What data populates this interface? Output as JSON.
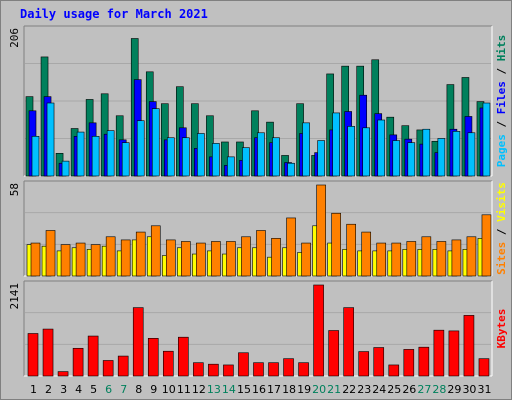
{
  "chart_data": {
    "type": "bar",
    "title": "Daily usage for March 2021",
    "categories": [
      "1",
      "2",
      "3",
      "4",
      "5",
      "6",
      "7",
      "8",
      "9",
      "10",
      "11",
      "12",
      "13",
      "14",
      "15",
      "16",
      "17",
      "18",
      "19",
      "20",
      "21",
      "22",
      "23",
      "24",
      "25",
      "26",
      "27",
      "28",
      "29",
      "30",
      "31"
    ],
    "weekend_days": [
      "6",
      "7",
      "13",
      "14",
      "20",
      "21",
      "27",
      "28"
    ],
    "colors": {
      "hits": "#00805c",
      "files": "#0000ff",
      "pages": "#00c0ff",
      "visits": "#ffff00",
      "sites": "#ff8000",
      "kbytes": "#ff0000",
      "weekday_tick": "#000000",
      "weekend_tick": "#00805c"
    },
    "panels": [
      {
        "name": "hits-files-pages",
        "ymax_label": "206",
        "ylim": [
          0,
          206
        ],
        "side_label": [
          "Pages",
          "Files",
          "Hits"
        ],
        "series": [
          {
            "name": "Hits",
            "color": "#00805c",
            "values": [
              112,
              168,
              32,
              67,
              108,
              116,
              85,
              194,
              147,
              102,
              126,
              102,
              85,
              48,
              48,
              92,
              76,
              29,
              102,
              29,
              144,
              155,
              155,
              164,
              83,
              71,
              65,
              49,
              129,
              139,
              105
            ]
          },
          {
            "name": "Files",
            "color": "#0000ff",
            "values": [
              92,
              112,
              18,
              56,
              75,
              59,
              51,
              136,
              105,
              51,
              68,
              39,
              27,
              15,
              22,
              54,
              47,
              19,
              60,
              33,
              65,
              91,
              114,
              88,
              58,
              52,
              45,
              33,
              66,
              84,
              96
            ]
          },
          {
            "name": "Pages",
            "color": "#00c0ff",
            "values": [
              56,
              103,
              21,
              62,
              56,
              64,
              47,
              78,
              95,
              54,
              54,
              60,
              46,
              27,
              40,
              61,
              54,
              18,
              75,
              50,
              89,
              70,
              68,
              79,
              50,
              47,
              66,
              53,
              63,
              61,
              103
            ]
          }
        ]
      },
      {
        "name": "visits-sites",
        "ymax_label": "58",
        "ylim": [
          0,
          58
        ],
        "side_label": [
          "Sites",
          "Visits"
        ],
        "series": [
          {
            "name": "Visits",
            "color": "#ffff00",
            "values": [
              20,
              19,
              16,
              18,
              17,
              19,
              16,
              23,
              25,
              13,
              18,
              14,
              16,
              14,
              18,
              18,
              12,
              18,
              15,
              32,
              21,
              17,
              16,
              16,
              16,
              17,
              17,
              17,
              16,
              17,
              24
            ]
          },
          {
            "name": "Sites",
            "color": "#ff8000",
            "values": [
              21,
              29,
              20,
              21,
              20,
              25,
              23,
              28,
              32,
              23,
              22,
              21,
              22,
              22,
              25,
              29,
              24,
              37,
              21,
              58,
              40,
              33,
              28,
              21,
              21,
              22,
              25,
              22,
              23,
              25,
              39
            ]
          }
        ]
      },
      {
        "name": "kbytes",
        "ymax_label": "2141",
        "ylim": [
          0,
          2141
        ],
        "side_label": [
          "KBytes"
        ],
        "series": [
          {
            "name": "KBytes",
            "color": "#ff0000",
            "values": [
              1000,
              1104,
              104,
              652,
              940,
              365,
              469,
              1609,
              887,
              583,
              913,
              313,
              278,
              260,
              547,
              313,
              313,
              408,
              313,
              2141,
              1070,
              1609,
              575,
              670,
              260,
              626,
              678,
              1078,
              1061,
              1426,
              408
            ]
          }
        ]
      }
    ]
  }
}
